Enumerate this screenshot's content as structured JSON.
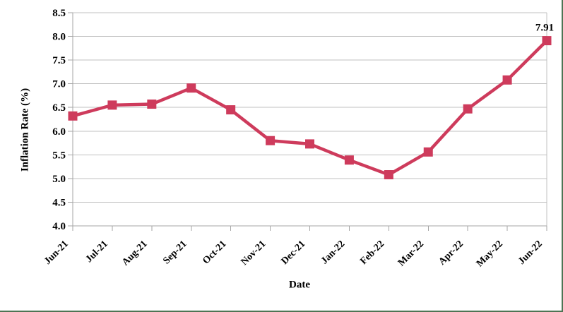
{
  "colors": {
    "series": "#ce3b5c",
    "gridline": "#c0c0c0",
    "axis": "#a6a6a6",
    "frame_border": "#4e7454",
    "text": "#000000",
    "background": "#ffffff"
  },
  "chart_data": {
    "type": "line",
    "title": "",
    "xlabel": "Date",
    "ylabel": "Inflation Rate (%)",
    "categories": [
      "Jun-21",
      "Jul-21",
      "Aug-21",
      "Sep-21",
      "Oct-21",
      "Nov-21",
      "Dec-21",
      "Jan-22",
      "Feb-22",
      "Mar-22",
      "Apr-22",
      "May-22",
      "Jun-22"
    ],
    "values": [
      6.32,
      6.55,
      6.57,
      6.91,
      6.45,
      5.8,
      5.73,
      5.39,
      5.08,
      5.56,
      6.47,
      7.08,
      7.91
    ],
    "ylim": [
      4.0,
      8.5
    ],
    "ytick_step": 0.5,
    "ytick_labels": [
      "4.0",
      "4.5",
      "5.0",
      "5.5",
      "6.0",
      "6.5",
      "7.0",
      "7.5",
      "8.0",
      "8.5"
    ],
    "grid": "horizontal",
    "legend": "none",
    "marker": "square",
    "last_point_label": "7.91"
  }
}
